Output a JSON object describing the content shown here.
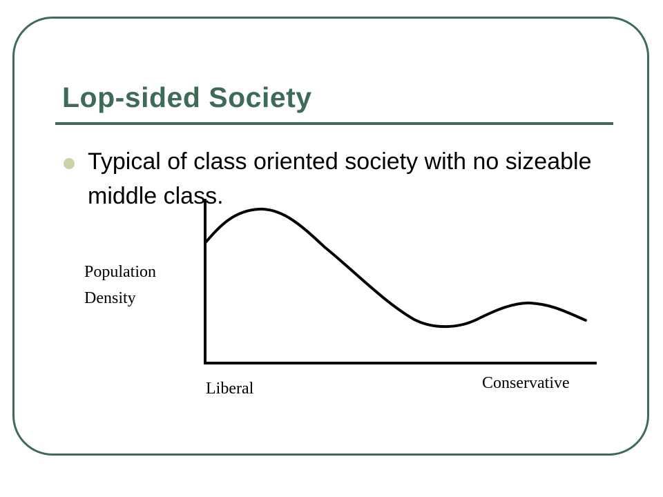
{
  "slide": {
    "title": "Lop-sided Society",
    "bullets": [
      "Typical of class oriented society with no sizeable middle class."
    ],
    "colors": {
      "accent": "#3e6b58",
      "bullet": "#c8d3a6"
    }
  },
  "chart_data": {
    "type": "line",
    "ylabel_line1": "Population",
    "ylabel_line2": "Density",
    "x_left_label": "Liberal",
    "x_right_label": "Conservative",
    "grid": false
  }
}
